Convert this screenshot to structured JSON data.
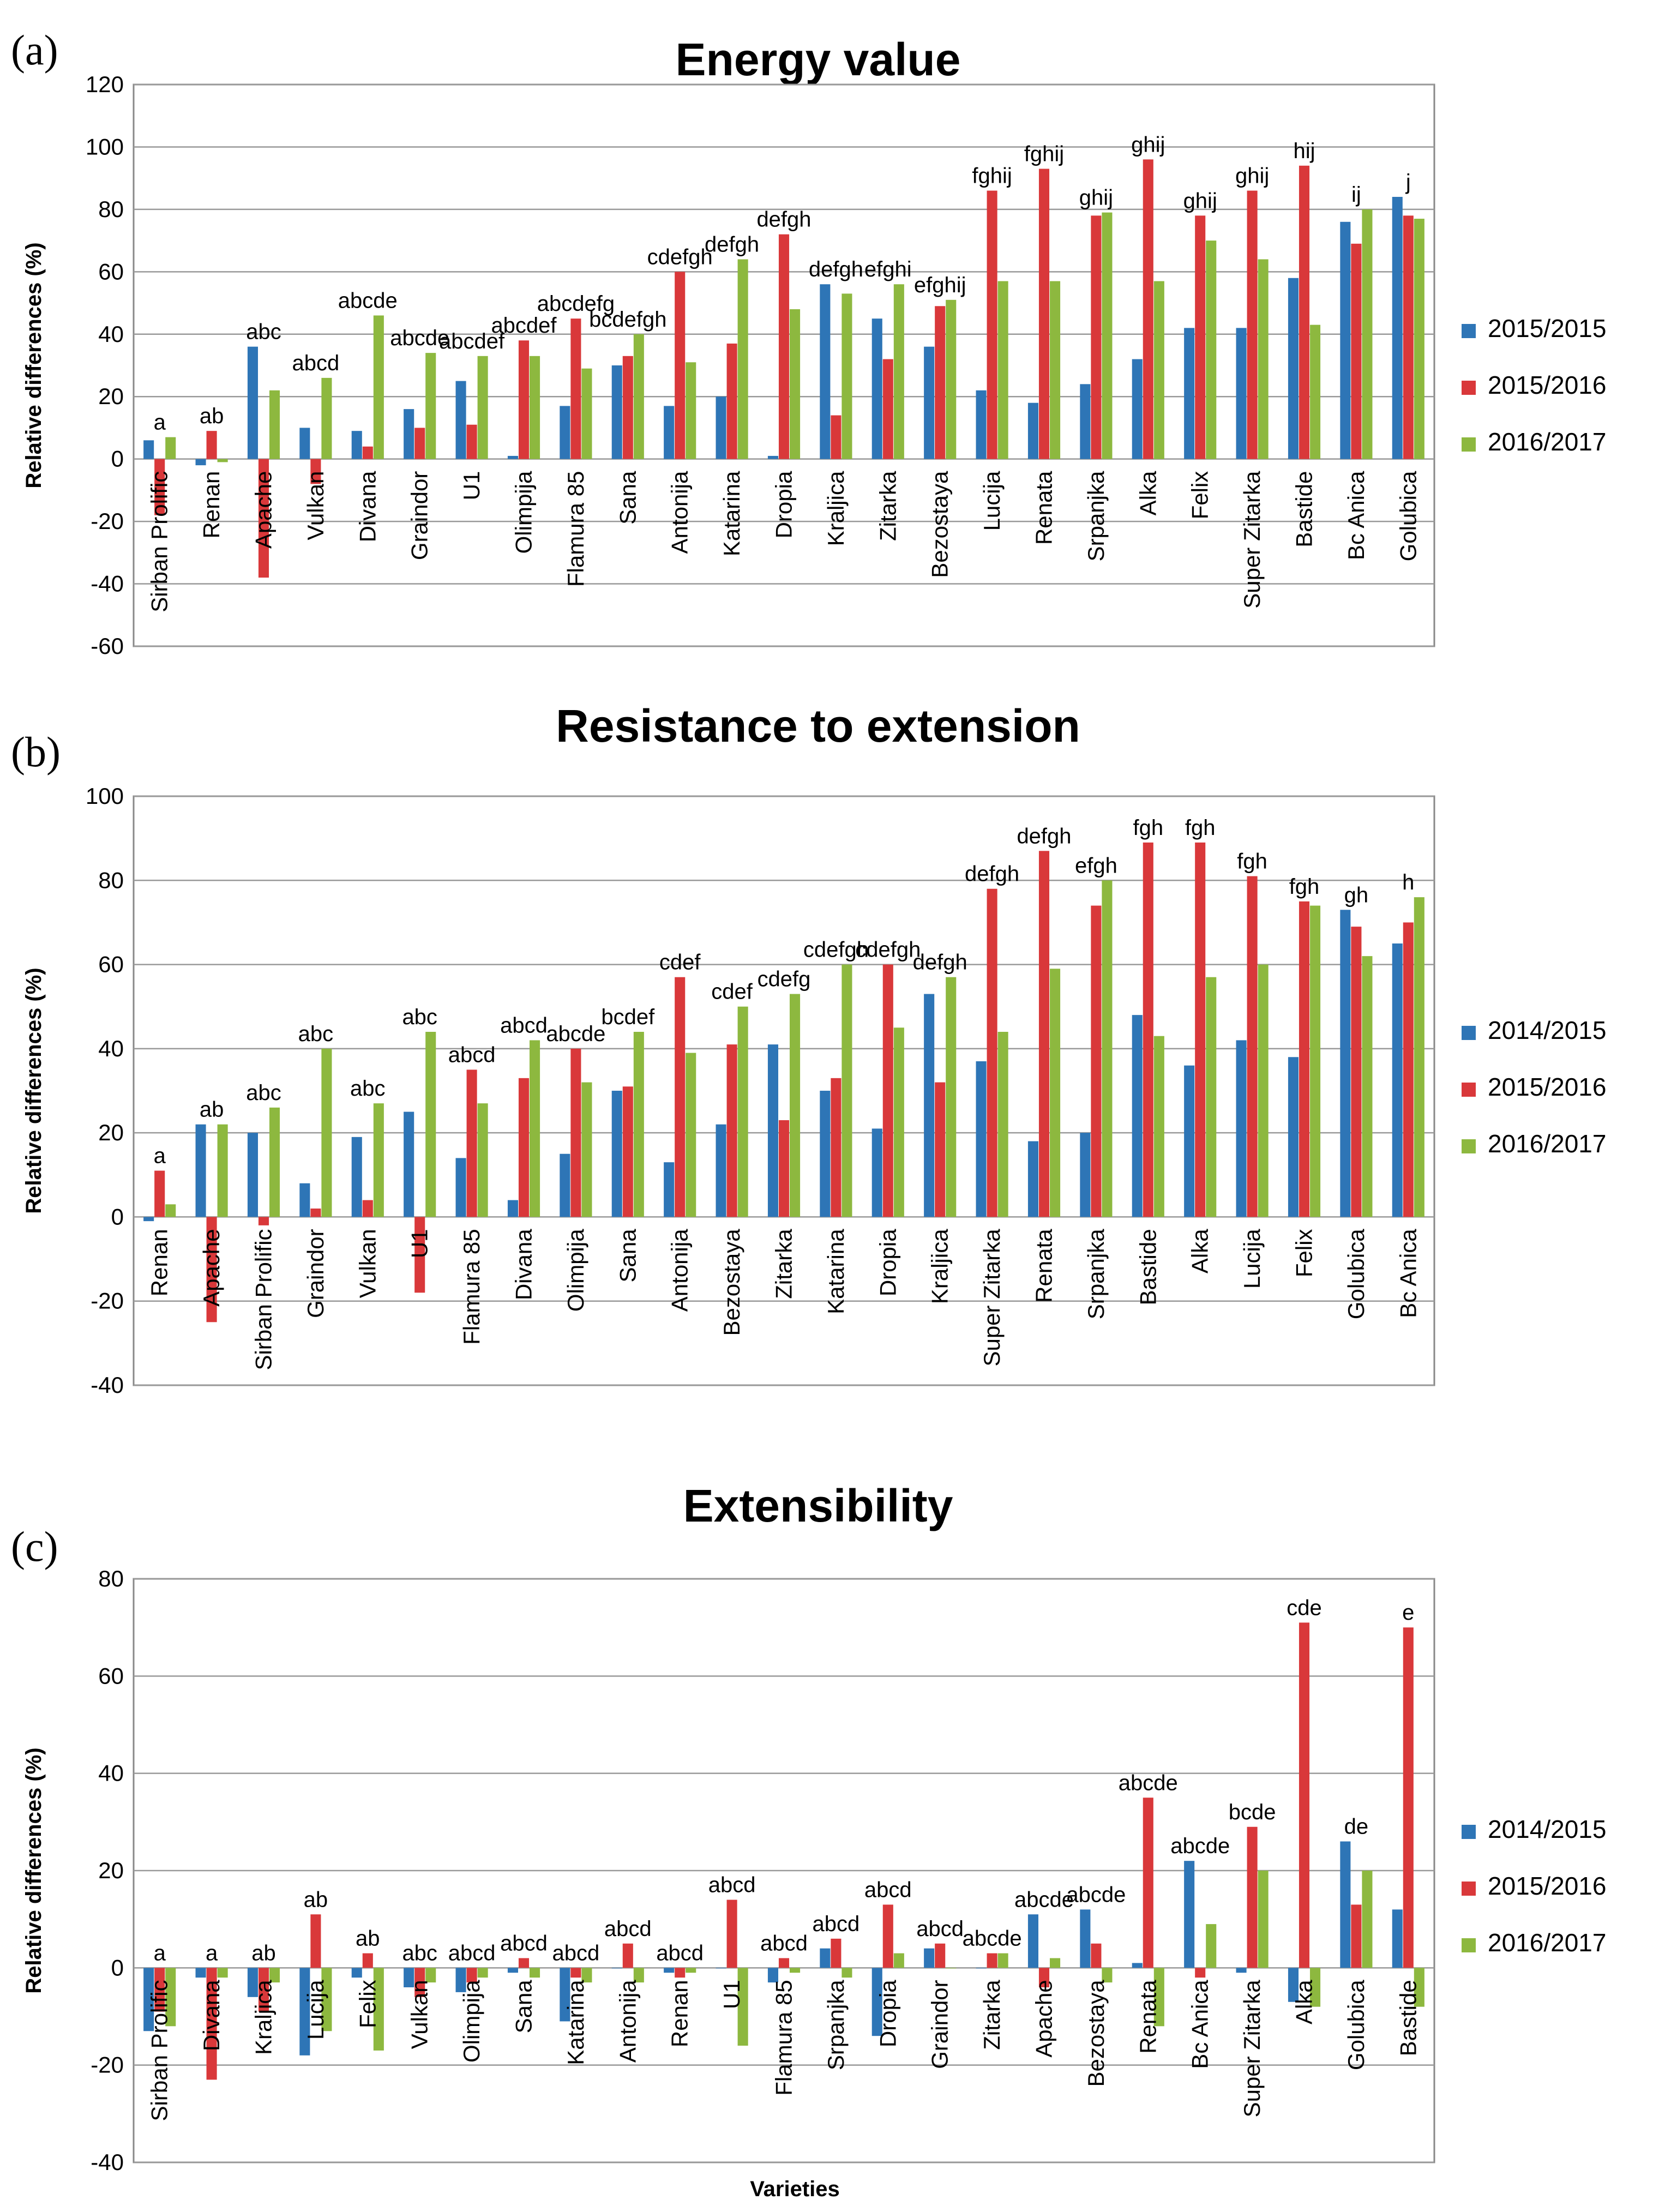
{
  "colors": {
    "s1": "#2E75B6",
    "s2": "#D9383A",
    "s3": "#8DB83F"
  },
  "chart_data": [
    {
      "type": "bar",
      "panel_label": "(a)",
      "title": "Energy value",
      "xlabel": "",
      "ylabel": "Relative differences (%)",
      "ylim": [
        -60,
        120
      ],
      "yticks": [
        -60,
        -40,
        -20,
        0,
        20,
        40,
        60,
        80,
        100,
        120
      ],
      "legend_position": "right",
      "categories": [
        "Sirban Prolific",
        "Renan",
        "Apache",
        "Vulkan",
        "Divana",
        "Graindor",
        "U1",
        "Olimpija",
        "Flamura 85",
        "Sana",
        "Antonija",
        "Katarina",
        "Dropia",
        "Kraljica",
        "Zitarka",
        "Bezostaya",
        "Lucija",
        "Renata",
        "Srpanjka",
        "Alka",
        "Felix",
        "Super Zitarka",
        "Bastide",
        "Bc Anica",
        "Golubica"
      ],
      "series": [
        {
          "name": "2015/2015",
          "values": [
            6,
            -2,
            36,
            10,
            9,
            16,
            25,
            1,
            17,
            30,
            17,
            20,
            1,
            56,
            45,
            36,
            22,
            18,
            24,
            32,
            42,
            42,
            58,
            76,
            84
          ]
        },
        {
          "name": "2015/2016",
          "values": [
            -18,
            9,
            -38,
            -8,
            4,
            10,
            11,
            38,
            45,
            33,
            60,
            37,
            72,
            14,
            32,
            49,
            86,
            93,
            78,
            96,
            78,
            86,
            94,
            69,
            78
          ]
        },
        {
          "name": "2016/2017",
          "values": [
            7,
            -1,
            22,
            26,
            46,
            34,
            33,
            33,
            29,
            40,
            31,
            64,
            48,
            53,
            56,
            51,
            57,
            57,
            79,
            57,
            70,
            64,
            43,
            80,
            77
          ]
        }
      ],
      "annotations": [
        "a",
        "ab",
        "abc",
        "abcd",
        "abcde",
        "abcde",
        "abcdef",
        "abcdef",
        "abcdefg",
        "bcdefgh",
        "cdefgh",
        "defgh",
        "defgh",
        "defgh",
        "efghi",
        "efghij",
        "fghij",
        "fghij",
        "ghij",
        "ghij",
        "ghij",
        "ghij",
        "hij",
        "ij",
        "j"
      ]
    },
    {
      "type": "bar",
      "panel_label": "(b)",
      "title": "Resistance to extension",
      "xlabel": "",
      "ylabel": "Relative differences (%)",
      "ylim": [
        -40,
        100
      ],
      "yticks": [
        -40,
        -20,
        0,
        20,
        40,
        60,
        80,
        100
      ],
      "legend_position": "right",
      "categories": [
        "Renan",
        "Apache",
        "Sirban Prolific",
        "Graindor",
        "Vulkan",
        "U1",
        "Flamura 85",
        "Divana",
        "Olimpija",
        "Sana",
        "Antonija",
        "Bezostaya",
        "Zitarka",
        "Katarina",
        "Dropia",
        "Kraljica",
        "Super Zitarka",
        "Renata",
        "Srpanjka",
        "Bastide",
        "Alka",
        "Lucija",
        "Felix",
        "Golubica",
        "Bc Anica"
      ],
      "series": [
        {
          "name": "2014/2015",
          "values": [
            -1,
            22,
            20,
            8,
            19,
            25,
            14,
            4,
            15,
            30,
            13,
            22,
            41,
            30,
            21,
            53,
            37,
            18,
            20,
            48,
            36,
            42,
            38,
            73,
            65
          ]
        },
        {
          "name": "2015/2016",
          "values": [
            11,
            -25,
            -2,
            2,
            4,
            -18,
            35,
            33,
            40,
            31,
            57,
            41,
            23,
            33,
            60,
            32,
            78,
            87,
            74,
            89,
            89,
            81,
            75,
            69,
            70
          ]
        },
        {
          "name": "2016/2017",
          "values": [
            3,
            22,
            26,
            40,
            27,
            44,
            27,
            42,
            32,
            44,
            39,
            50,
            53,
            60,
            45,
            57,
            44,
            59,
            80,
            43,
            57,
            60,
            74,
            62,
            76
          ]
        }
      ],
      "annotations": [
        "a",
        "ab",
        "abc",
        "abc",
        "abc",
        "abc",
        "abcd",
        "abcd",
        "abcde",
        "bcdef",
        "cdef",
        "cdef",
        "cdefg",
        "cdefgh",
        "cdefgh",
        "defgh",
        "defgh",
        "defgh",
        "efgh",
        "fgh",
        "fgh",
        "fgh",
        "fgh",
        "gh",
        "h"
      ]
    },
    {
      "type": "bar",
      "panel_label": "(c)",
      "title": "Extensibility",
      "xlabel": "Varieties",
      "ylabel": "Relative differences (%)",
      "ylim": [
        -40,
        80
      ],
      "yticks": [
        -40,
        -20,
        0,
        20,
        40,
        60,
        80
      ],
      "legend_position": "right",
      "categories": [
        "Sirban Prolific",
        "Divana",
        "Kraljica",
        "Lucija",
        "Felix",
        "Vulkan",
        "Olimpija",
        "Sana",
        "Katarina",
        "Antonija",
        "Renan",
        "U1",
        "Flamura 85",
        "Srpanjka",
        "Dropia",
        "Graindor",
        "Zitarka",
        "Apache",
        "Bezostaya",
        "Renata",
        "Bc Anica",
        "Super Zitarka",
        "Alka",
        "Golubica",
        "Bastide"
      ],
      "series": [
        {
          "name": "2014/2015",
          "values": [
            -13,
            -2,
            -6,
            -18,
            -2,
            -4,
            -5,
            -1,
            -11,
            0,
            -1,
            0,
            -3,
            4,
            -14,
            4,
            0,
            11,
            12,
            1,
            22,
            -1,
            -7,
            26,
            12
          ]
        },
        {
          "name": "2015/2016",
          "values": [
            -9,
            -23,
            -9,
            11,
            3,
            -6,
            -3,
            2,
            -2,
            5,
            -2,
            14,
            2,
            6,
            13,
            5,
            3,
            -4,
            5,
            35,
            -2,
            29,
            71,
            13,
            70
          ]
        },
        {
          "name": "2016/2017",
          "values": [
            -12,
            -2,
            -3,
            -13,
            -17,
            -3,
            -2,
            -2,
            -3,
            -3,
            -1,
            -16,
            -1,
            -2,
            3,
            0,
            3,
            2,
            -3,
            -12,
            9,
            20,
            -8,
            20,
            -8
          ]
        }
      ],
      "annotations": [
        "a",
        "a",
        "ab",
        "ab",
        "ab",
        "abc",
        "abcd",
        "abcd",
        "abcd",
        "abcd",
        "abcd",
        "abcd",
        "abcd",
        "abcd",
        "abcd",
        "abcd",
        "abcde",
        "abcde",
        "abcde",
        "abcde",
        "abcde",
        "bcde",
        "cde",
        "de",
        "e"
      ]
    }
  ]
}
